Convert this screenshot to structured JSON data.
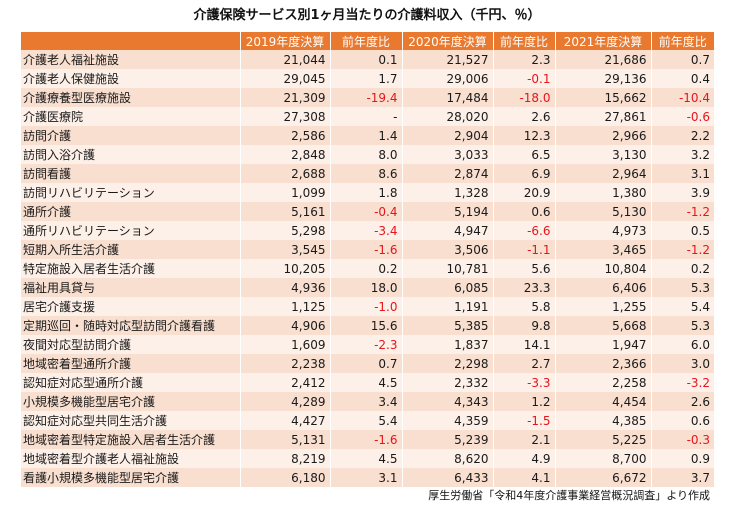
{
  "title": "介護保険サービス別1ヶ月当たりの介護料収入（千円、％）",
  "source": "厚生労働省「令和4年度介護事業経営概況調査」より作成",
  "colors": {
    "header": "#e8792f",
    "row_odd": "#f8dfd0",
    "row_even": "#fdf0e8",
    "negative": "#e8151b"
  },
  "headers": [
    "",
    "2019年度決算",
    "前年度比",
    "2020年度決算",
    "前年度比",
    "2021年度決算",
    "前年度比"
  ],
  "rows": [
    {
      "name": "介護老人福祉施設",
      "v2019": "21,044",
      "r2019": "0.1",
      "v2020": "21,527",
      "r2020": "2.3",
      "v2021": "21,686",
      "r2021": "0.7"
    },
    {
      "name": "介護老人保健施設",
      "v2019": "29,045",
      "r2019": "1.7",
      "v2020": "29,006",
      "r2020": "-0.1",
      "v2021": "29,136",
      "r2021": "0.4"
    },
    {
      "name": "介護療養型医療施設",
      "v2019": "21,309",
      "r2019": "-19.4",
      "v2020": "17,484",
      "r2020": "-18.0",
      "v2021": "15,662",
      "r2021": "-10.4"
    },
    {
      "name": "介護医療院",
      "v2019": "27,308",
      "r2019": "-",
      "v2020": "28,020",
      "r2020": "2.6",
      "v2021": "27,861",
      "r2021": "-0.6"
    },
    {
      "name": "訪問介護",
      "v2019": "2,586",
      "r2019": "1.4",
      "v2020": "2,904",
      "r2020": "12.3",
      "v2021": "2,966",
      "r2021": "2.2"
    },
    {
      "name": "訪問入浴介護",
      "v2019": "2,848",
      "r2019": "8.0",
      "v2020": "3,033",
      "r2020": "6.5",
      "v2021": "3,130",
      "r2021": "3.2"
    },
    {
      "name": "訪問看護",
      "v2019": "2,688",
      "r2019": "8.6",
      "v2020": "2,874",
      "r2020": "6.9",
      "v2021": "2,964",
      "r2021": "3.1"
    },
    {
      "name": "訪問リハビリテーション",
      "v2019": "1,099",
      "r2019": "1.8",
      "v2020": "1,328",
      "r2020": "20.9",
      "v2021": "1,380",
      "r2021": "3.9"
    },
    {
      "name": "通所介護",
      "v2019": "5,161",
      "r2019": "-0.4",
      "v2020": "5,194",
      "r2020": "0.6",
      "v2021": "5,130",
      "r2021": "-1.2"
    },
    {
      "name": "通所リハビリテーション",
      "v2019": "5,298",
      "r2019": "-3.4",
      "v2020": "4,947",
      "r2020": "-6.6",
      "v2021": "4,973",
      "r2021": "0.5"
    },
    {
      "name": "短期入所生活介護",
      "v2019": "3,545",
      "r2019": "-1.6",
      "v2020": "3,506",
      "r2020": "-1.1",
      "v2021": "3,465",
      "r2021": "-1.2"
    },
    {
      "name": "特定施設入居者生活介護",
      "v2019": "10,205",
      "r2019": "0.2",
      "v2020": "10,781",
      "r2020": "5.6",
      "v2021": "10,804",
      "r2021": "0.2"
    },
    {
      "name": "福祉用具貸与",
      "v2019": "4,936",
      "r2019": "18.0",
      "v2020": "6,085",
      "r2020": "23.3",
      "v2021": "6,406",
      "r2021": "5.3"
    },
    {
      "name": "居宅介護支援",
      "v2019": "1,125",
      "r2019": "-1.0",
      "v2020": "1,191",
      "r2020": "5.8",
      "v2021": "1,255",
      "r2021": "5.4"
    },
    {
      "name": "定期巡回・随時対応型訪問介護看護",
      "v2019": "4,906",
      "r2019": "15.6",
      "v2020": "5,385",
      "r2020": "9.8",
      "v2021": "5,668",
      "r2021": "5.3"
    },
    {
      "name": "夜間対応型訪問介護",
      "v2019": "1,609",
      "r2019": "-2.3",
      "v2020": "1,837",
      "r2020": "14.1",
      "v2021": "1,947",
      "r2021": "6.0"
    },
    {
      "name": "地域密着型通所介護",
      "v2019": "2,238",
      "r2019": "0.7",
      "v2020": "2,298",
      "r2020": "2.7",
      "v2021": "2,366",
      "r2021": "3.0"
    },
    {
      "name": "認知症対応型通所介護",
      "v2019": "2,412",
      "r2019": "4.5",
      "v2020": "2,332",
      "r2020": "-3.3",
      "v2021": "2,258",
      "r2021": "-3.2"
    },
    {
      "name": "小規模多機能型居宅介護",
      "v2019": "4,289",
      "r2019": "3.4",
      "v2020": "4,343",
      "r2020": "1.2",
      "v2021": "4,454",
      "r2021": "2.6"
    },
    {
      "name": "認知症対応型共同生活介護",
      "v2019": "4,427",
      "r2019": "5.4",
      "v2020": "4,359",
      "r2020": "-1.5",
      "v2021": "4,385",
      "r2021": "0.6"
    },
    {
      "name": "地域密着型特定施設入居者生活介護",
      "v2019": "5,131",
      "r2019": "-1.6",
      "v2020": "5,239",
      "r2020": "2.1",
      "v2021": "5,225",
      "r2021": "-0.3"
    },
    {
      "name": "地域密着型介護老人福祉施設",
      "v2019": "8,219",
      "r2019": "4.5",
      "v2020": "8,620",
      "r2020": "4.9",
      "v2021": "8,700",
      "r2021": "0.9"
    },
    {
      "name": "看護小規模多機能型居宅介護",
      "v2019": "6,180",
      "r2019": "3.1",
      "v2020": "6,433",
      "r2020": "4.1",
      "v2021": "6,672",
      "r2021": "3.7"
    }
  ]
}
